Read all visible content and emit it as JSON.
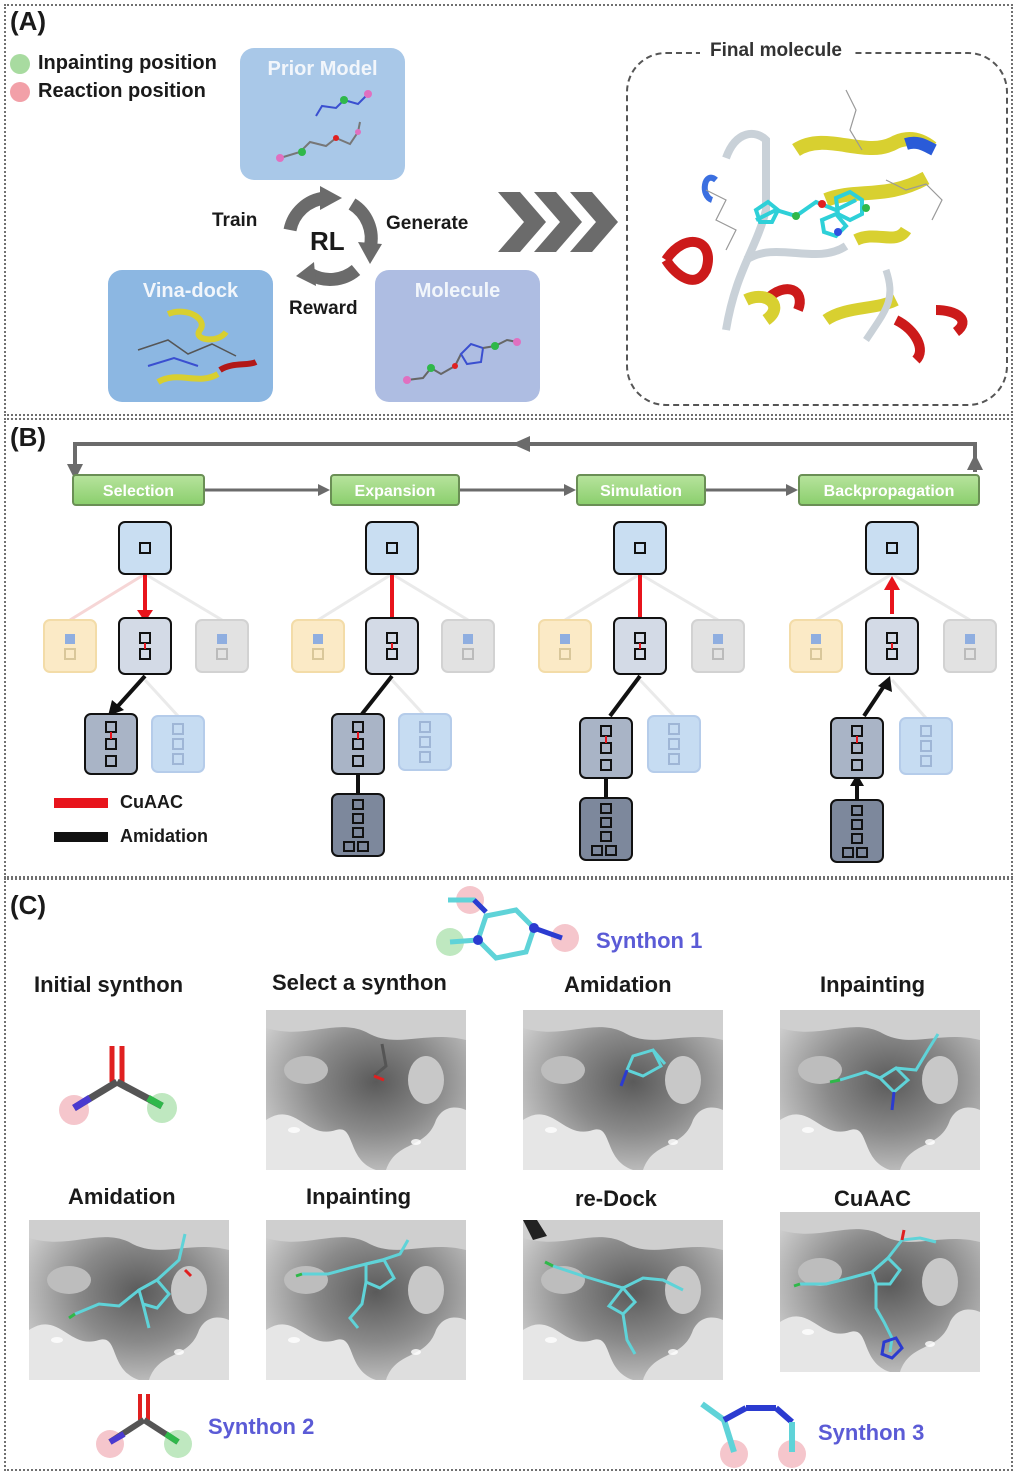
{
  "panels": {
    "a": "(A)",
    "b": "(B)",
    "c": "(C)"
  },
  "panel_a": {
    "legend": [
      {
        "label": "Inpainting position",
        "color": "#a8dba0"
      },
      {
        "label": "Reaction position",
        "color": "#f2a0a8"
      }
    ],
    "prior_model": "Prior Model",
    "rl": "RL",
    "train": "Train",
    "generate": "Generate",
    "reward": "Reward",
    "vina_dock": "Vina-dock",
    "molecule": "Molecule",
    "final_molecule": "Final molecule"
  },
  "panel_b": {
    "stages": [
      "Selection",
      "Expansion",
      "Simulation",
      "Backpropagation"
    ],
    "legend": [
      {
        "label": "CuAAC",
        "color": "#e8141c"
      },
      {
        "label": "Amidation",
        "color": "#111111"
      }
    ]
  },
  "panel_c": {
    "initial_synthon": "Initial synthon",
    "steps_row1": [
      "Select a synthon",
      "Amidation",
      "Inpainting"
    ],
    "steps_row2": [
      "Amidation",
      "Inpainting",
      "re-Dock",
      "CuAAC"
    ],
    "synthon1": "Synthon 1",
    "synthon2": "Synthon 2",
    "synthon3": "Synthon 3"
  },
  "colors": {
    "accent_synthon": "#5b5bd6",
    "inpaint": "#a8dba0",
    "reaction": "#f2a0a8",
    "carbon": "#5fd3d8",
    "nitrogen": "#2b3bd0",
    "oxygen": "#e02020"
  }
}
